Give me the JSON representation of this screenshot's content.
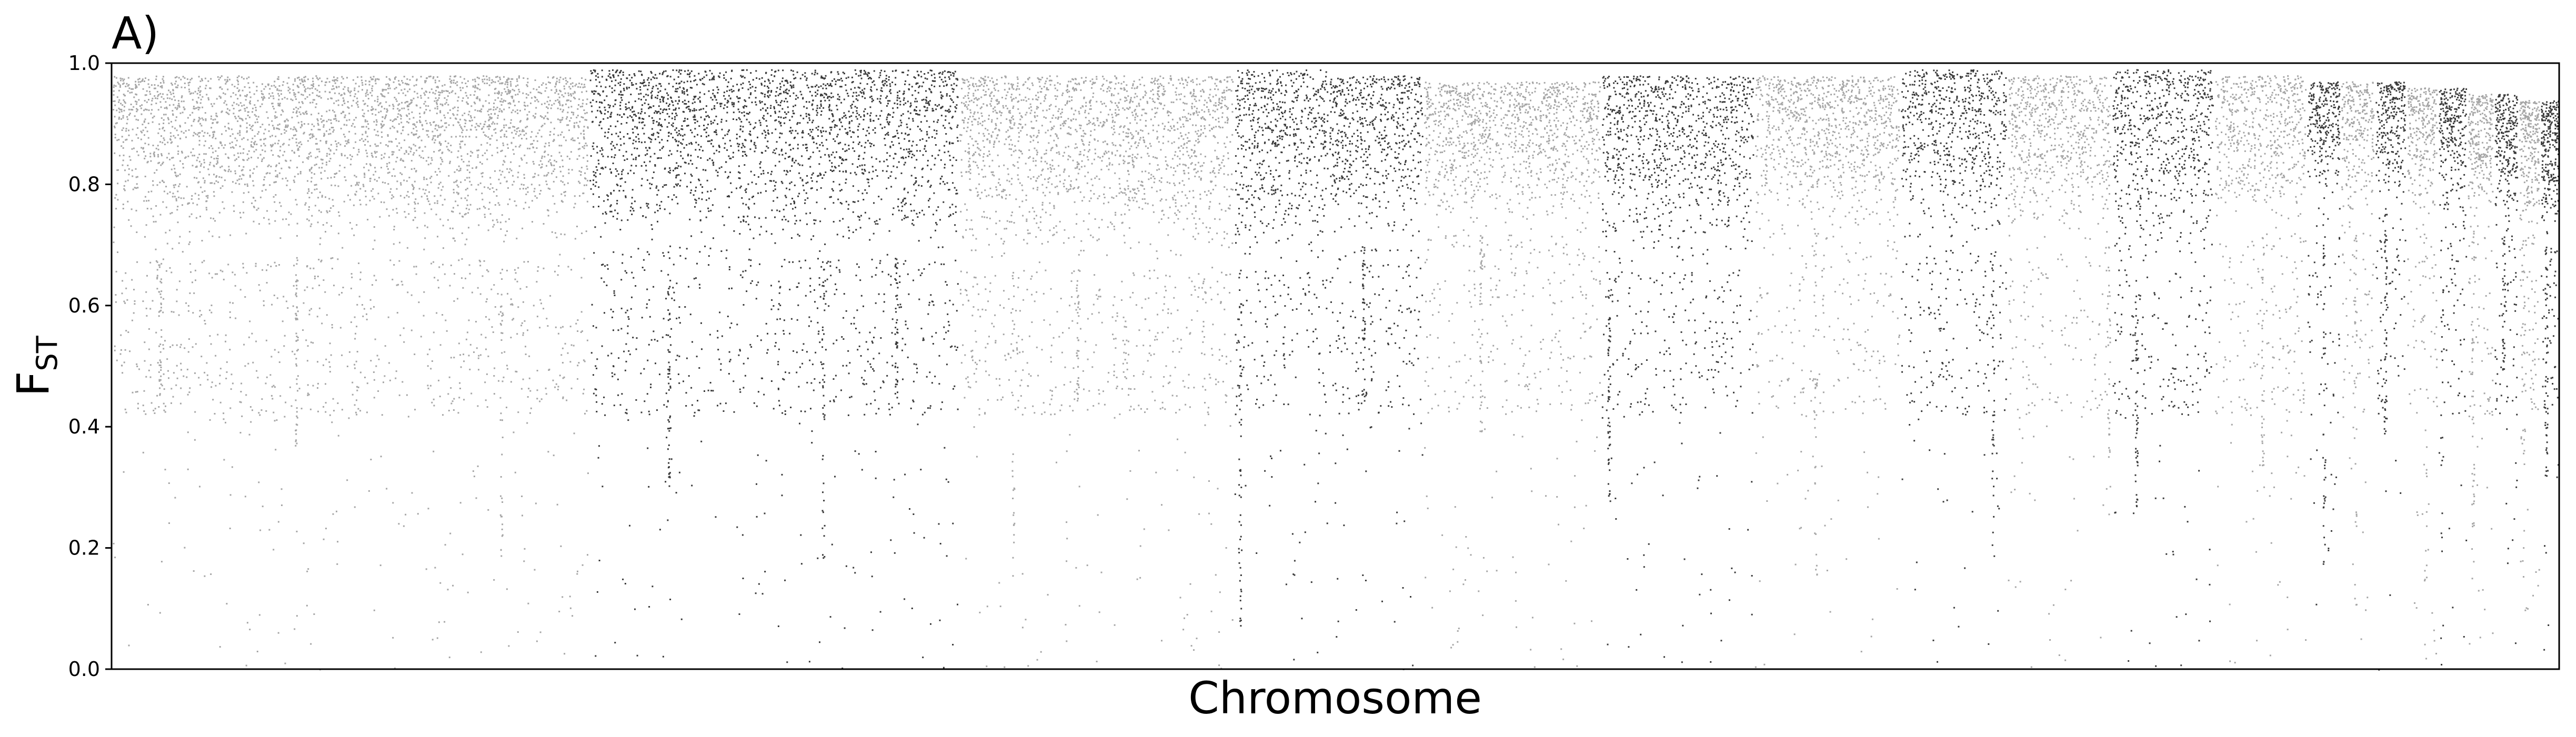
{
  "panel_label": "A)",
  "chart_data": {
    "type": "scatter",
    "title": "",
    "xlabel": "Chromosome",
    "ylabel_main": "F",
    "ylabel_sub": "ST",
    "ylim": [
      0.0,
      1.0
    ],
    "yticks": [
      "0.0",
      "0.2",
      "0.4",
      "0.6",
      "0.8",
      "1.0"
    ],
    "xticks": [],
    "grid": false,
    "legend": "none",
    "colors": {
      "light": "#a6a6a6",
      "dark": "#3a3a3a",
      "axis": "#000000"
    },
    "chromosomes": [
      {
        "index": 1,
        "length": 19.6,
        "color": "light",
        "core_low": 0.68,
        "core_high": 0.98
      },
      {
        "index": 2,
        "length": 6.0,
        "color": "dark",
        "core_low": 0.7,
        "core_high": 0.99
      },
      {
        "index": 3,
        "length": 9.2,
        "color": "dark",
        "core_low": 0.68,
        "core_high": 0.99
      },
      {
        "index": 4,
        "length": 11.3,
        "color": "light",
        "core_low": 0.66,
        "core_high": 0.98
      },
      {
        "index": 5,
        "length": 3.9,
        "color": "dark",
        "core_low": 0.66,
        "core_high": 0.99
      },
      {
        "index": 6,
        "length": 3.9,
        "color": "dark",
        "core_low": 0.7,
        "core_high": 0.98
      },
      {
        "index": 7,
        "length": 7.3,
        "color": "light",
        "core_low": 0.72,
        "core_high": 0.97
      },
      {
        "index": 8,
        "length": 6.3,
        "color": "dark",
        "core_low": 0.66,
        "core_high": 0.98
      },
      {
        "index": 9,
        "length": 6.0,
        "color": "light",
        "core_low": 0.72,
        "core_high": 0.98
      },
      {
        "index": 10,
        "length": 4.4,
        "color": "dark",
        "core_low": 0.7,
        "core_high": 0.99
      },
      {
        "index": 11,
        "length": 4.3,
        "color": "light",
        "core_low": 0.7,
        "core_high": 0.98
      },
      {
        "index": 12,
        "length": 4.2,
        "color": "dark",
        "core_low": 0.66,
        "core_high": 0.99
      },
      {
        "index": 13,
        "length": 3.8,
        "color": "light",
        "core_low": 0.72,
        "core_high": 0.98
      },
      {
        "index": 14,
        "length": 1.4,
        "color": "dark",
        "core_low": 0.78,
        "core_high": 0.97
      },
      {
        "index": 15,
        "length": 1.4,
        "color": "light",
        "core_low": 0.74,
        "core_high": 0.97
      },
      {
        "index": 16,
        "length": 1.3,
        "color": "dark",
        "core_low": 0.77,
        "core_high": 0.97
      },
      {
        "index": 17,
        "length": 1.3,
        "color": "light",
        "core_low": 0.74,
        "core_high": 0.96
      },
      {
        "index": 18,
        "length": 1.2,
        "color": "dark",
        "core_low": 0.74,
        "core_high": 0.96
      },
      {
        "index": 19,
        "length": 1.1,
        "color": "light",
        "core_low": 0.74,
        "core_high": 0.95
      },
      {
        "index": 20,
        "length": 1.0,
        "color": "dark",
        "core_low": 0.72,
        "core_high": 0.95
      },
      {
        "index": 21,
        "length": 0.9,
        "color": "light",
        "core_low": 0.72,
        "core_high": 0.94
      },
      {
        "index": 22,
        "length": 0.8,
        "color": "dark",
        "core_low": 0.7,
        "core_high": 0.94
      }
    ]
  }
}
